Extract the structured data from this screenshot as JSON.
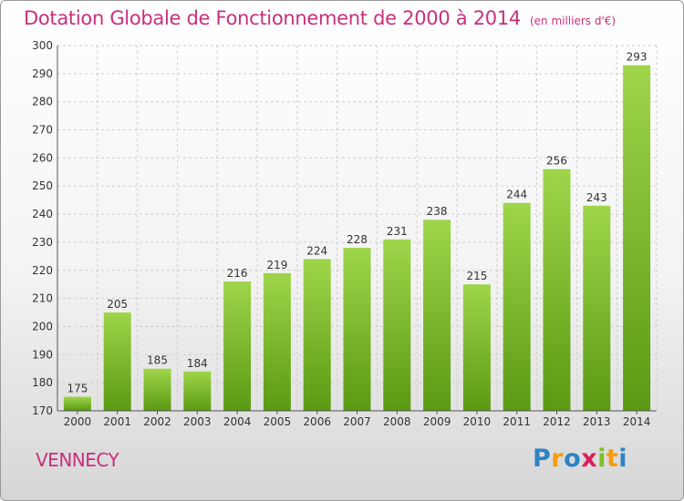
{
  "header": {
    "title": "Dotation Globale de Fonctionnement de 2000 à 2014",
    "subtitle": "(en milliers d'€)"
  },
  "footer": {
    "city": "VENNECY",
    "logo": "Proxiti"
  },
  "colors": {
    "title": "#c8307c",
    "bar_top": "#9fd54a",
    "bar_bottom": "#5a9a12",
    "grid": "#cfcfcf"
  },
  "chart_data": {
    "type": "bar",
    "title": "Dotation Globale de Fonctionnement de 2000 à 2014",
    "subtitle": "(en milliers d'€)",
    "xlabel": "",
    "ylabel": "",
    "ylim": [
      170,
      300
    ],
    "yticks": [
      170,
      180,
      190,
      200,
      210,
      220,
      230,
      240,
      250,
      260,
      270,
      280,
      290,
      300
    ],
    "grid": true,
    "categories": [
      "2000",
      "2001",
      "2002",
      "2003",
      "2004",
      "2005",
      "2006",
      "2007",
      "2008",
      "2009",
      "2010",
      "2011",
      "2012",
      "2013",
      "2014"
    ],
    "values": [
      175,
      205,
      185,
      184,
      216,
      219,
      224,
      228,
      231,
      238,
      215,
      244,
      256,
      243,
      293
    ]
  }
}
